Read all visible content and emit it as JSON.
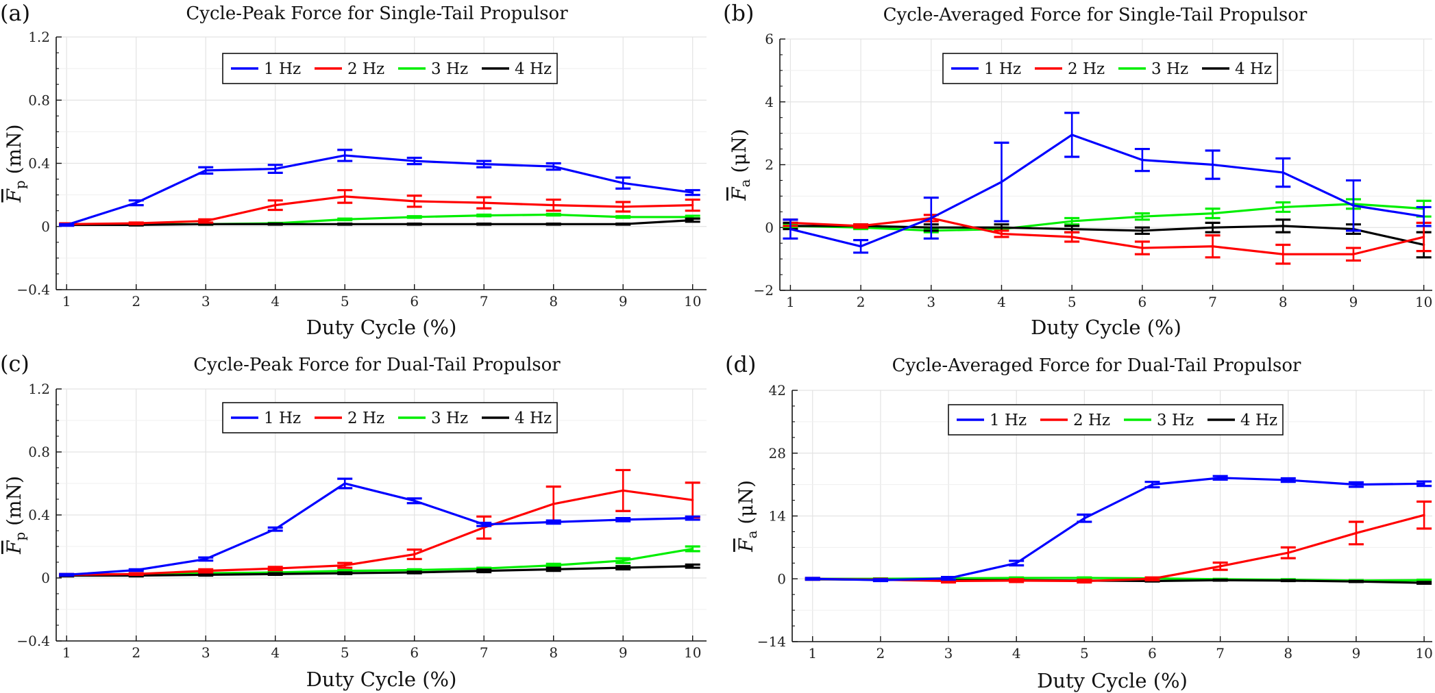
{
  "chart_data": [
    {
      "panel": "(a)",
      "type": "line",
      "title": "Cycle-Peak Force for Single-Tail Propulsor",
      "xlabel": "Duty Cycle (%)",
      "ylabel_symbol": "F",
      "ylabel_sub": "p",
      "ylabel_unit": "(mN)",
      "x": [
        1,
        2,
        3,
        4,
        5,
        6,
        7,
        8,
        9,
        10
      ],
      "xlim": [
        0.85,
        10.2
      ],
      "ylim": [
        -0.4,
        1.2
      ],
      "yticks": [
        -0.4,
        0,
        0.4,
        0.8,
        1.2
      ],
      "ytick_labels": [
        "−0.4",
        "0",
        "0.4",
        "0.8",
        "1.2"
      ],
      "legend_position": "top-center",
      "series": [
        {
          "name": "1 Hz",
          "color": "#0000ff",
          "values": [
            0.01,
            0.15,
            0.355,
            0.365,
            0.45,
            0.415,
            0.395,
            0.38,
            0.275,
            0.215
          ],
          "errors": [
            0.005,
            0.015,
            0.02,
            0.025,
            0.035,
            0.02,
            0.02,
            0.02,
            0.035,
            0.015
          ]
        },
        {
          "name": "2 Hz",
          "color": "#ff0000",
          "values": [
            0.015,
            0.02,
            0.035,
            0.135,
            0.19,
            0.16,
            0.15,
            0.135,
            0.125,
            0.135
          ],
          "errors": [
            0.005,
            0.005,
            0.01,
            0.03,
            0.04,
            0.035,
            0.035,
            0.035,
            0.03,
            0.035
          ]
        },
        {
          "name": "3 Hz",
          "color": "#00ee00",
          "values": [
            0.01,
            0.015,
            0.015,
            0.02,
            0.045,
            0.06,
            0.07,
            0.075,
            0.06,
            0.06
          ],
          "errors": [
            0.003,
            0.003,
            0.003,
            0.003,
            0.005,
            0.005,
            0.005,
            0.005,
            0.005,
            0.008
          ]
        },
        {
          "name": "4 Hz",
          "color": "#000000",
          "values": [
            0.01,
            0.01,
            0.015,
            0.015,
            0.015,
            0.015,
            0.015,
            0.015,
            0.015,
            0.04
          ],
          "errors": [
            0.003,
            0.003,
            0.003,
            0.003,
            0.003,
            0.003,
            0.003,
            0.003,
            0.003,
            0.01
          ]
        }
      ]
    },
    {
      "panel": "(b)",
      "type": "line",
      "title": "Cycle-Averaged Force for Single-Tail Propulsor",
      "xlabel": "Duty Cycle (%)",
      "ylabel_symbol": "F",
      "ylabel_sub": "a",
      "ylabel_unit": "(μN)",
      "x": [
        1,
        2,
        3,
        4,
        5,
        6,
        7,
        8,
        9,
        10
      ],
      "xlim": [
        0.85,
        10.12
      ],
      "ylim": [
        -2,
        6
      ],
      "yticks": [
        -2,
        0,
        2,
        4,
        6
      ],
      "ytick_labels": [
        "−2",
        "0",
        "2",
        "4",
        "6"
      ],
      "legend_position": "top-center",
      "series": [
        {
          "name": "1 Hz",
          "color": "#0000ff",
          "values": [
            -0.05,
            -0.6,
            0.3,
            1.45,
            2.95,
            2.15,
            2.0,
            1.75,
            0.7,
            0.35
          ],
          "errors": [
            0.3,
            0.2,
            0.65,
            1.25,
            0.7,
            0.35,
            0.45,
            0.45,
            0.8,
            0.3
          ]
        },
        {
          "name": "2 Hz",
          "color": "#ff0000",
          "values": [
            0.15,
            0.05,
            0.3,
            -0.2,
            -0.3,
            -0.65,
            -0.6,
            -0.85,
            -0.85,
            -0.3
          ],
          "errors": [
            0.1,
            0.05,
            0.1,
            0.1,
            0.15,
            0.2,
            0.35,
            0.3,
            0.2,
            0.45
          ]
        },
        {
          "name": "3 Hz",
          "color": "#00ee00",
          "values": [
            0.05,
            0.0,
            -0.1,
            -0.05,
            0.2,
            0.35,
            0.45,
            0.65,
            0.75,
            0.6
          ],
          "errors": [
            0.05,
            0.05,
            0.05,
            0.05,
            0.1,
            0.1,
            0.15,
            0.15,
            0.15,
            0.25
          ]
        },
        {
          "name": "4 Hz",
          "color": "#000000",
          "values": [
            0.05,
            0.05,
            0.0,
            0.0,
            -0.05,
            -0.1,
            0.0,
            0.05,
            -0.05,
            -0.55
          ],
          "errors": [
            0.1,
            0.05,
            0.1,
            0.1,
            0.1,
            0.1,
            0.15,
            0.2,
            0.15,
            0.4
          ]
        }
      ]
    },
    {
      "panel": "(c)",
      "type": "line",
      "title": "Cycle-Peak Force for Dual-Tail Propulsor",
      "xlabel": "Duty Cycle (%)",
      "ylabel_symbol": "F",
      "ylabel_sub": "p",
      "ylabel_unit": "(mN)",
      "x": [
        1,
        2,
        3,
        4,
        5,
        6,
        7,
        8,
        9,
        10
      ],
      "xlim": [
        0.85,
        10.2
      ],
      "ylim": [
        -0.4,
        1.2
      ],
      "yticks": [
        -0.4,
        0,
        0.4,
        0.8,
        1.2
      ],
      "ytick_labels": [
        "−0.4",
        "0",
        "0.4",
        "0.8",
        "1.2"
      ],
      "legend_position": "top-center",
      "series": [
        {
          "name": "1 Hz",
          "color": "#0000ff",
          "values": [
            0.02,
            0.05,
            0.12,
            0.31,
            0.6,
            0.49,
            0.34,
            0.355,
            0.37,
            0.38
          ],
          "errors": [
            0.005,
            0.005,
            0.01,
            0.01,
            0.03,
            0.015,
            0.01,
            0.01,
            0.01,
            0.01
          ]
        },
        {
          "name": "2 Hz",
          "color": "#ff0000",
          "values": [
            0.02,
            0.025,
            0.045,
            0.06,
            0.08,
            0.15,
            0.32,
            0.47,
            0.555,
            0.495
          ],
          "errors": [
            0.005,
            0.005,
            0.01,
            0.01,
            0.015,
            0.03,
            0.07,
            0.11,
            0.13,
            0.11
          ]
        },
        {
          "name": "3 Hz",
          "color": "#00ee00",
          "values": [
            0.02,
            0.02,
            0.03,
            0.035,
            0.045,
            0.05,
            0.06,
            0.08,
            0.11,
            0.185
          ],
          "errors": [
            0.003,
            0.003,
            0.005,
            0.005,
            0.005,
            0.005,
            0.005,
            0.01,
            0.015,
            0.015
          ]
        },
        {
          "name": "4 Hz",
          "color": "#000000",
          "values": [
            0.015,
            0.015,
            0.02,
            0.025,
            0.03,
            0.035,
            0.045,
            0.055,
            0.065,
            0.075
          ],
          "errors": [
            0.005,
            0.005,
            0.005,
            0.005,
            0.005,
            0.005,
            0.008,
            0.01,
            0.01,
            0.01
          ]
        }
      ]
    },
    {
      "panel": "(d)",
      "type": "line",
      "title": "Cycle-Averaged Force for Dual-Tail Propulsor",
      "xlabel": "Duty Cycle (%)",
      "ylabel_symbol": "F",
      "ylabel_sub": "a",
      "ylabel_unit": "(μN)",
      "x": [
        1,
        2,
        3,
        4,
        5,
        6,
        7,
        8,
        9,
        10
      ],
      "xlim": [
        0.7,
        10.12
      ],
      "ylim": [
        -14,
        42
      ],
      "yticks": [
        -14,
        0,
        14,
        28,
        42
      ],
      "ytick_labels": [
        "−14",
        "0",
        "14",
        "28",
        "42"
      ],
      "legend_position": "top-center",
      "series": [
        {
          "name": "1 Hz",
          "color": "#0000ff",
          "values": [
            0.0,
            -0.3,
            0.1,
            3.5,
            13.5,
            21.0,
            22.5,
            22.0,
            21.0,
            21.2
          ],
          "errors": [
            0.2,
            0.2,
            0.3,
            0.5,
            0.8,
            0.6,
            0.4,
            0.4,
            0.5,
            0.5
          ]
        },
        {
          "name": "2 Hz",
          "color": "#ff0000",
          "values": [
            0.0,
            -0.2,
            -0.5,
            -0.4,
            -0.5,
            0.0,
            2.8,
            5.8,
            10.2,
            14.2
          ],
          "errors": [
            0.2,
            0.2,
            0.3,
            0.3,
            0.3,
            0.3,
            0.8,
            1.2,
            2.5,
            3.0
          ]
        },
        {
          "name": "3 Hz",
          "color": "#00ee00",
          "values": [
            0.0,
            0.0,
            0.1,
            0.2,
            0.2,
            0.1,
            -0.1,
            -0.2,
            -0.4,
            -0.3
          ],
          "errors": [
            0.1,
            0.1,
            0.1,
            0.1,
            0.1,
            0.1,
            0.1,
            0.1,
            0.1,
            0.1
          ]
        },
        {
          "name": "4 Hz",
          "color": "#000000",
          "values": [
            -0.1,
            -0.2,
            -0.3,
            -0.3,
            -0.4,
            -0.5,
            -0.3,
            -0.4,
            -0.6,
            -0.9
          ],
          "errors": [
            0.1,
            0.1,
            0.1,
            0.1,
            0.1,
            0.1,
            0.1,
            0.1,
            0.1,
            0.2
          ]
        }
      ]
    }
  ]
}
